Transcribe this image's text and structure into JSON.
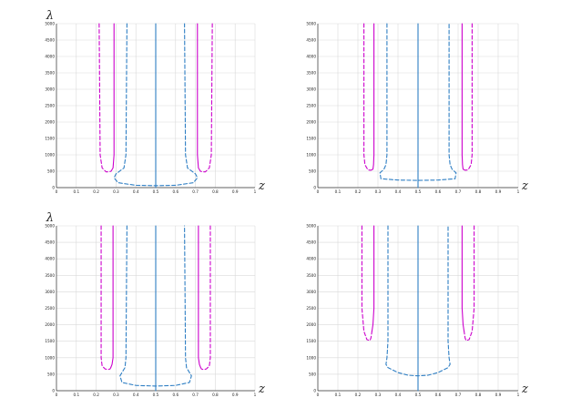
{
  "colors": {
    "magenta": "#cc00cc",
    "blue": "#2f7fc4",
    "grid": "#d9d9d9"
  },
  "chart_data": [
    {
      "type": "line",
      "ylabel": "λ",
      "xlabel": "z",
      "xlim": [
        0,
        1
      ],
      "ylim": [
        0,
        5000
      ],
      "xticks": [
        "0",
        "0.1",
        "0.2",
        "0.3",
        "0.4",
        "0.5",
        "0.6",
        "0.7",
        "0.8",
        "0.9",
        "1"
      ],
      "yticks": [
        "0",
        "500",
        "1000",
        "1500",
        "2000",
        "2500",
        "3000",
        "3500",
        "4000",
        "4500",
        "5000"
      ],
      "series": [
        {
          "color": "magenta",
          "style": "dashed",
          "x": [
            0.215,
            0.22,
            0.23,
            0.25,
            0.265,
            0.275
          ],
          "y": [
            5000,
            1000,
            600,
            480,
            480,
            500
          ]
        },
        {
          "color": "magenta",
          "style": "solid",
          "x": [
            0.29,
            0.29,
            0.285,
            0.275
          ],
          "y": [
            5000,
            1000,
            600,
            500
          ]
        },
        {
          "color": "magenta",
          "style": "solid",
          "x": [
            0.71,
            0.71,
            0.715,
            0.725
          ],
          "y": [
            5000,
            1000,
            600,
            500
          ]
        },
        {
          "color": "magenta",
          "style": "dashed",
          "x": [
            0.785,
            0.78,
            0.77,
            0.75,
            0.735,
            0.725
          ],
          "y": [
            5000,
            1000,
            600,
            480,
            480,
            500
          ]
        },
        {
          "color": "blue",
          "style": "dashed",
          "x": [
            0.355,
            0.35,
            0.34,
            0.3,
            0.29,
            0.31,
            0.4,
            0.5,
            0.6,
            0.69,
            0.71,
            0.7,
            0.66,
            0.65,
            0.645
          ],
          "y": [
            5000,
            1000,
            600,
            420,
            300,
            150,
            70,
            60,
            70,
            150,
            300,
            420,
            600,
            1000,
            5000
          ]
        },
        {
          "color": "blue",
          "style": "solid",
          "x": [
            0.5,
            0.5
          ],
          "y": [
            0,
            5000
          ]
        }
      ]
    },
    {
      "type": "line",
      "ylabel": "",
      "xlabel": "z",
      "xlim": [
        0,
        1
      ],
      "ylim": [
        0,
        5000
      ],
      "xticks": [
        "0",
        "0.1",
        "0.2",
        "0.3",
        "0.4",
        "0.5",
        "0.6",
        "0.7",
        "0.8",
        "0.9",
        "1"
      ],
      "yticks": [
        "0",
        "500",
        "1000",
        "1500",
        "2000",
        "2500",
        "3000",
        "3500",
        "4000",
        "4500",
        "5000"
      ],
      "series": [
        {
          "color": "magenta",
          "style": "dashed",
          "x": [
            0.23,
            0.23,
            0.235,
            0.25,
            0.265,
            0.275
          ],
          "y": [
            5000,
            1000,
            700,
            540,
            530,
            560
          ]
        },
        {
          "color": "magenta",
          "style": "solid",
          "x": [
            0.28,
            0.28,
            0.278,
            0.275
          ],
          "y": [
            5000,
            1000,
            700,
            560
          ]
        },
        {
          "color": "magenta",
          "style": "solid",
          "x": [
            0.72,
            0.72,
            0.722,
            0.725
          ],
          "y": [
            5000,
            1000,
            700,
            560
          ]
        },
        {
          "color": "magenta",
          "style": "dashed",
          "x": [
            0.77,
            0.77,
            0.765,
            0.75,
            0.735,
            0.725
          ],
          "y": [
            5000,
            1000,
            700,
            540,
            530,
            560
          ]
        },
        {
          "color": "blue",
          "style": "dashed",
          "x": [
            0.345,
            0.345,
            0.34,
            0.33,
            0.31,
            0.315,
            0.4,
            0.5,
            0.6,
            0.685,
            0.69,
            0.67,
            0.66,
            0.655,
            0.655
          ],
          "y": [
            5000,
            1000,
            700,
            560,
            450,
            270,
            230,
            220,
            230,
            270,
            450,
            560,
            700,
            1000,
            5000
          ]
        },
        {
          "color": "blue",
          "style": "solid",
          "x": [
            0.5,
            0.5
          ],
          "y": [
            0,
            5000
          ]
        }
      ]
    },
    {
      "type": "line",
      "ylabel": "λ",
      "xlabel": "z",
      "xlim": [
        0,
        1
      ],
      "ylim": [
        0,
        5000
      ],
      "xticks": [
        "0",
        "0.1",
        "0.2",
        "0.3",
        "0.4",
        "0.5",
        "0.6",
        "0.7",
        "0.8",
        "0.9",
        "1"
      ],
      "yticks": [
        "0",
        "500",
        "1000",
        "1500",
        "2000",
        "2500",
        "3000",
        "3500",
        "4000",
        "4500",
        "5000"
      ],
      "series": [
        {
          "color": "magenta",
          "style": "dashed",
          "x": [
            0.225,
            0.225,
            0.23,
            0.245,
            0.26,
            0.27,
            0.275
          ],
          "y": [
            5000,
            1000,
            750,
            660,
            640,
            660,
            720
          ]
        },
        {
          "color": "magenta",
          "style": "solid",
          "x": [
            0.285,
            0.285,
            0.28,
            0.275
          ],
          "y": [
            5000,
            1000,
            800,
            720
          ]
        },
        {
          "color": "magenta",
          "style": "solid",
          "x": [
            0.715,
            0.715,
            0.72,
            0.725
          ],
          "y": [
            5000,
            1000,
            800,
            720
          ]
        },
        {
          "color": "magenta",
          "style": "dashed",
          "x": [
            0.775,
            0.775,
            0.77,
            0.755,
            0.74,
            0.73,
            0.725
          ],
          "y": [
            5000,
            1000,
            750,
            660,
            640,
            660,
            720
          ]
        },
        {
          "color": "blue",
          "style": "dashed",
          "x": [
            0.355,
            0.35,
            0.345,
            0.33,
            0.32,
            0.33,
            0.4,
            0.5,
            0.6,
            0.67,
            0.68,
            0.67,
            0.655,
            0.65,
            0.645
          ],
          "y": [
            5000,
            1000,
            700,
            550,
            450,
            250,
            160,
            140,
            160,
            250,
            450,
            550,
            700,
            1000,
            5000
          ]
        },
        {
          "color": "blue",
          "style": "solid",
          "x": [
            0.5,
            0.5
          ],
          "y": [
            0,
            5000
          ]
        }
      ]
    },
    {
      "type": "line",
      "ylabel": "",
      "xlabel": "z",
      "xlim": [
        0,
        1
      ],
      "ylim": [
        0,
        5000
      ],
      "xticks": [
        "0",
        "0.1",
        "0.2",
        "0.3",
        "0.4",
        "0.5",
        "0.6",
        "0.7",
        "0.8",
        "0.9",
        "1"
      ],
      "yticks": [
        "0",
        "500",
        "1000",
        "1500",
        "2000",
        "2500",
        "3000",
        "3500",
        "4000",
        "4500",
        "5000"
      ],
      "series": [
        {
          "color": "magenta",
          "style": "dashed",
          "x": [
            0.22,
            0.22,
            0.23,
            0.245,
            0.26,
            0.265,
            0.27
          ],
          "y": [
            5000,
            2500,
            1800,
            1550,
            1520,
            1600,
            1800
          ]
        },
        {
          "color": "magenta",
          "style": "solid",
          "x": [
            0.28,
            0.28,
            0.275,
            0.27
          ],
          "y": [
            5000,
            2500,
            2000,
            1800
          ]
        },
        {
          "color": "magenta",
          "style": "solid",
          "x": [
            0.72,
            0.72,
            0.725,
            0.73
          ],
          "y": [
            5000,
            2500,
            2000,
            1800
          ]
        },
        {
          "color": "magenta",
          "style": "dashed",
          "x": [
            0.78,
            0.78,
            0.77,
            0.755,
            0.74,
            0.735,
            0.73
          ],
          "y": [
            5000,
            2500,
            1800,
            1550,
            1520,
            1600,
            1800
          ]
        },
        {
          "color": "blue",
          "style": "dashed",
          "x": [
            0.35,
            0.35,
            0.345,
            0.34,
            0.35,
            0.4,
            0.45,
            0.5,
            0.55,
            0.6,
            0.65,
            0.66,
            0.655,
            0.65,
            0.65
          ],
          "y": [
            5000,
            1500,
            1000,
            800,
            700,
            550,
            470,
            450,
            470,
            550,
            700,
            800,
            1000,
            1500,
            5000
          ]
        },
        {
          "color": "blue",
          "style": "solid",
          "x": [
            0.5,
            0.5
          ],
          "y": [
            0,
            5000
          ]
        }
      ]
    }
  ]
}
